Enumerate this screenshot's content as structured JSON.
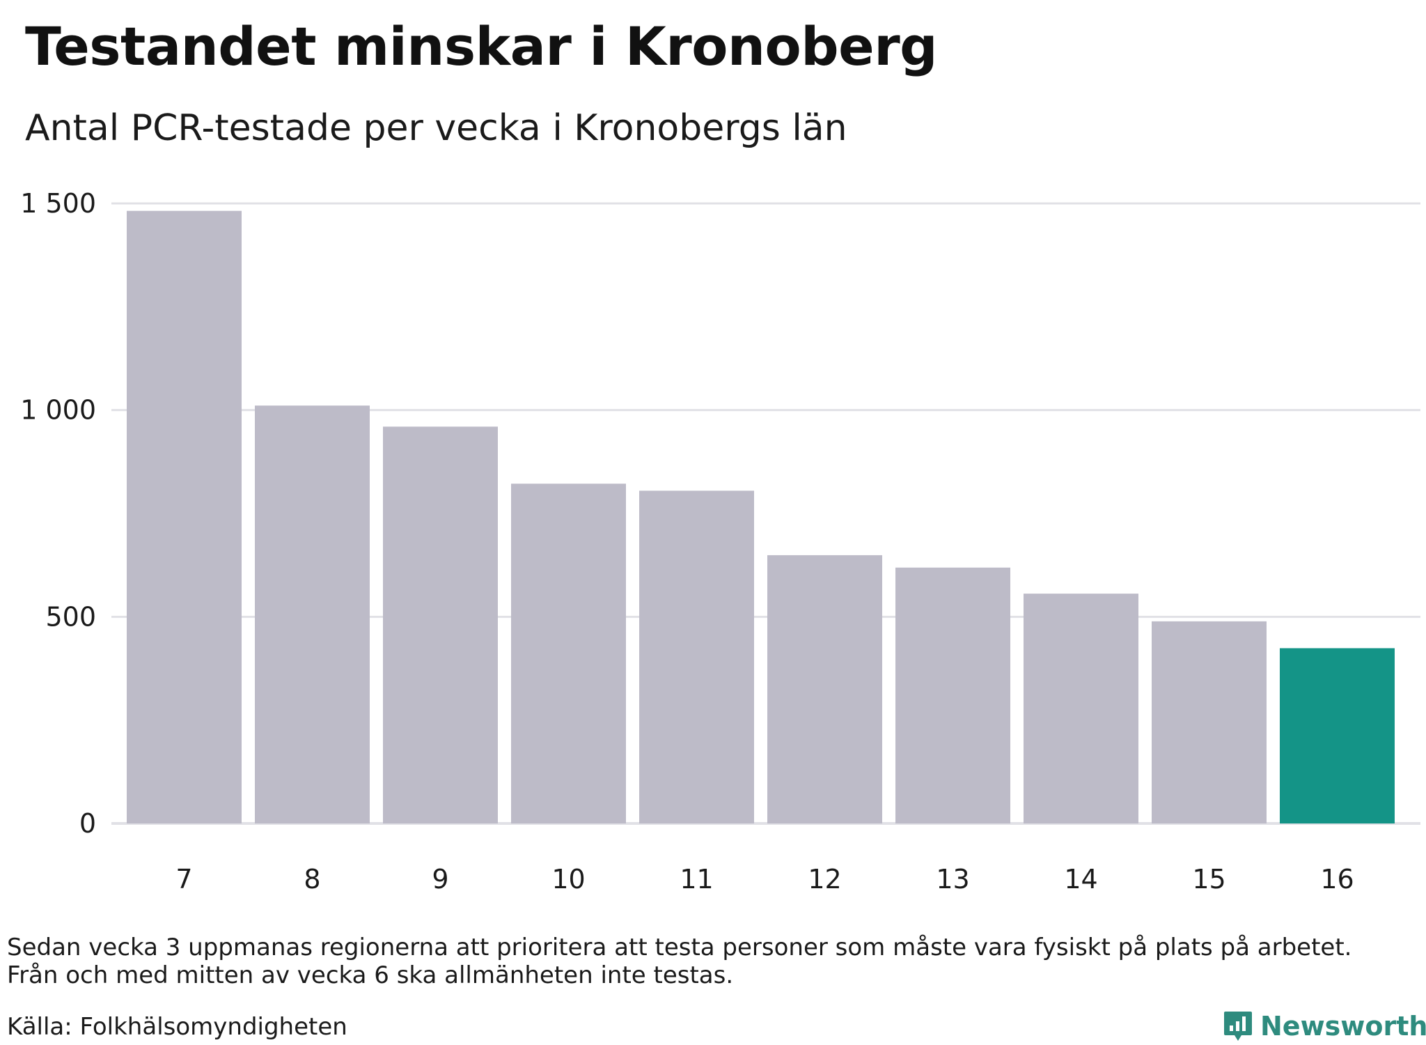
{
  "title": "Testandet minskar i Kronoberg",
  "subtitle": "Antal PCR-testade per vecka i Kronobergs län",
  "note_lines": [
    "Sedan vecka 3 uppmanas regionerna att prioritera att testa personer som måste vara fysiskt på plats på arbetet.",
    "Från och med mitten av vecka 6 ska allmänheten inte testas."
  ],
  "source": "Källa: Folkhälsomyndigheten",
  "brand": {
    "name": "Newsworthy",
    "icon": "newsworthy-logo-icon",
    "color": "#2e8b7e"
  },
  "colors": {
    "bar": "#bdbbc8",
    "highlight": "#149487",
    "grid": "#e1e1e6"
  },
  "chart_data": {
    "type": "bar",
    "title": "Testandet minskar i Kronoberg",
    "subtitle": "Antal PCR-testade per vecka i Kronobergs län",
    "xlabel": "",
    "ylabel": "",
    "categories": [
      "7",
      "8",
      "9",
      "10",
      "11",
      "12",
      "13",
      "14",
      "15",
      "16"
    ],
    "values": [
      1482,
      1011,
      960,
      822,
      805,
      649,
      619,
      556,
      489,
      424
    ],
    "highlight_index": 9,
    "ylim": [
      0,
      1500
    ],
    "y_ticks": [
      0,
      500,
      1000,
      1500
    ],
    "y_tick_labels": [
      "0",
      "500",
      "1 000",
      "1 500"
    ],
    "grid": "horizontal",
    "legend": "none"
  }
}
